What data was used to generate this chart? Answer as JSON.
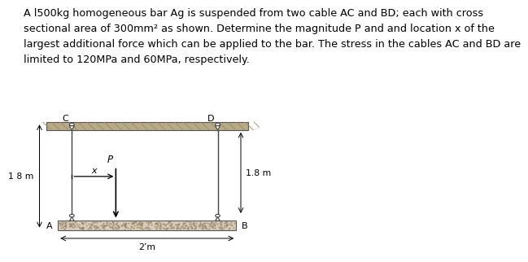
{
  "title_text": "A l500kg homogeneous bar Ag is suspended from two cable AC and BD; each with cross\nsectional area of 300mm² as shown. Determine the magnitude P and and location x of the\nlargest additional force which can be applied to the bar. The stress in the cables AC and BD are\nlimited to 120MPa and 60MPa, respectively.",
  "title_fontsize": 9.2,
  "fig_bg": "#ffffff",
  "diagram_bg": "#ede8df",
  "ceiling_color": "#b8aa88",
  "ceiling_hatch_color": "#9a8c6a",
  "bar_fill_light": "#d8cdb8",
  "bar_fill_dark": "#a89878",
  "bar_edge": "#555555",
  "cable_color": "#444444",
  "label_fontsize": 8.0,
  "dim_fontsize": 7.8,
  "fig_width": 5.69,
  "fig_height": 3.09
}
